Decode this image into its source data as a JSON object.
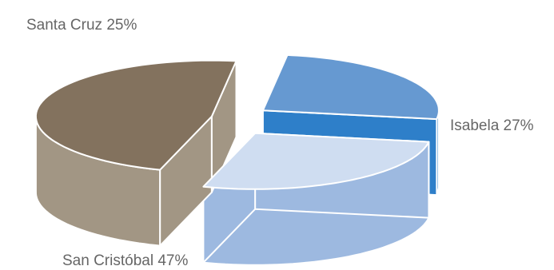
{
  "chart_data": {
    "type": "pie",
    "style": "3d-exploded",
    "legend": "none",
    "slices": [
      {
        "label": "Santa Cruz 25%",
        "category": "Santa Cruz",
        "value": 25,
        "top_color": "#6699D1",
        "side_color": "#2E7FC9"
      },
      {
        "label": "Isabela 27%",
        "category": "Isabela",
        "value": 27,
        "top_color": "#CFDDF1",
        "side_color": "#9DB9E0"
      },
      {
        "label": "San Cristóbal 47%",
        "category": "San Cristóbal",
        "value": 47,
        "top_color": "#83725E",
        "side_color": "#A29684"
      }
    ]
  }
}
